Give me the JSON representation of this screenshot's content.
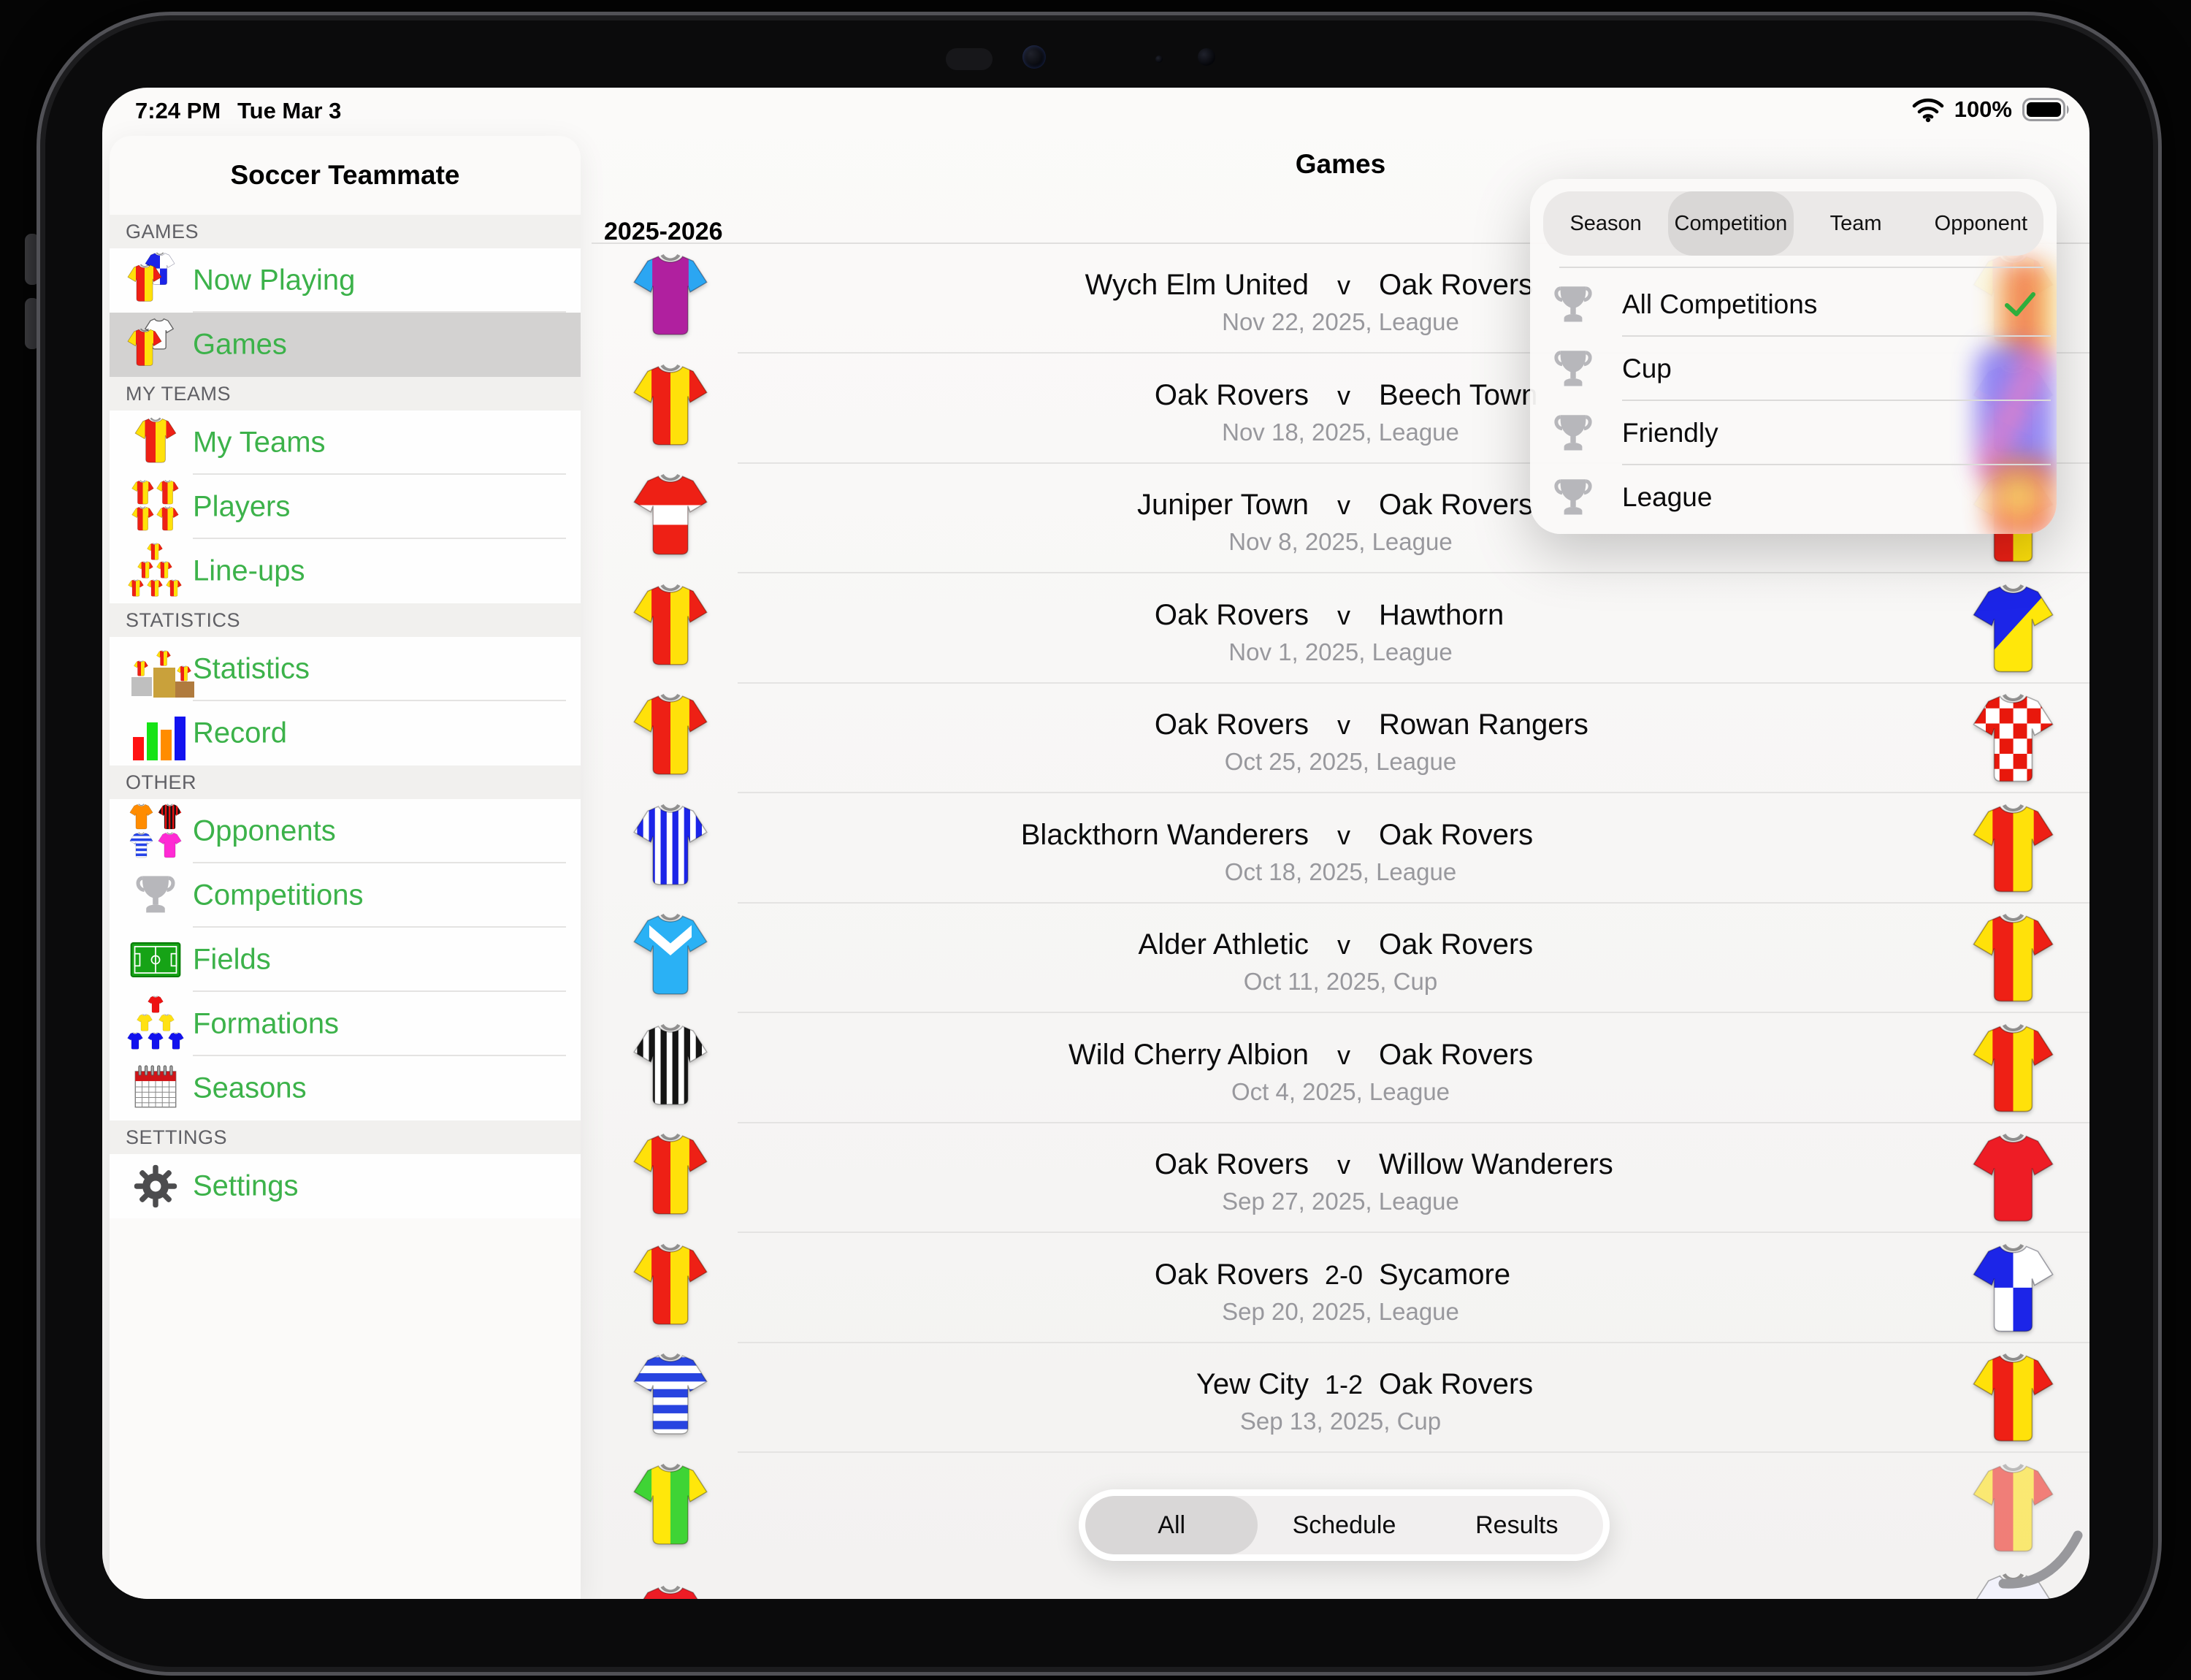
{
  "status_bar": {
    "time": "7:24 PM",
    "date": "Tue Mar 3",
    "battery_percent": "100%",
    "icons": [
      "wifi-icon",
      "battery-icon"
    ]
  },
  "colors": {
    "accent_green": "#3cb24a",
    "check_green": "#2fae3c",
    "selected_gray": "#d3d2d1"
  },
  "sidebar": {
    "title": "Soccer Teammate",
    "sections": [
      {
        "header": "GAMES",
        "items": [
          {
            "label": "Now Playing",
            "icon": "now-playing",
            "selected": false
          },
          {
            "label": "Games",
            "icon": "games",
            "selected": true
          }
        ]
      },
      {
        "header": "MY TEAMS",
        "items": [
          {
            "label": "My Teams",
            "icon": "my-teams",
            "selected": false
          },
          {
            "label": "Players",
            "icon": "players",
            "selected": false
          },
          {
            "label": "Line-ups",
            "icon": "line-ups",
            "selected": false
          }
        ]
      },
      {
        "header": "STATISTICS",
        "items": [
          {
            "label": "Statistics",
            "icon": "statistics",
            "selected": false
          },
          {
            "label": "Record",
            "icon": "record",
            "selected": false
          }
        ]
      },
      {
        "header": "OTHER",
        "items": [
          {
            "label": "Opponents",
            "icon": "opponents",
            "selected": false
          },
          {
            "label": "Competitions",
            "icon": "competitions",
            "selected": false
          },
          {
            "label": "Fields",
            "icon": "fields",
            "selected": false
          },
          {
            "label": "Formations",
            "icon": "formations",
            "selected": false
          },
          {
            "label": "Seasons",
            "icon": "seasons",
            "selected": false
          }
        ]
      },
      {
        "header": "SETTINGS",
        "items": [
          {
            "label": "Settings",
            "icon": "settings",
            "selected": false
          }
        ]
      }
    ]
  },
  "main": {
    "title": "Games",
    "season_header": "2025-2026",
    "games": [
      {
        "home": "Wych Elm United",
        "sep": "v",
        "away": "Oak Rovers",
        "detail": "Nov 22, 2025, League",
        "home_jersey": {
          "pattern": "sleeves",
          "c1": "#b0209f",
          "c2": "#2ba6f2"
        },
        "away_jersey": {
          "pattern": "halves",
          "c1": "#ee2015",
          "c2": "#ffe10a"
        }
      },
      {
        "home": "Oak Rovers",
        "sep": "v",
        "away": "Beech Town",
        "detail": "Nov 18, 2025, League",
        "home_jersey": {
          "pattern": "halves",
          "c1": "#ee2015",
          "c2": "#ffe10a"
        },
        "away_jersey": {
          "pattern": "sash",
          "c1": "#4a3fe0",
          "c2": "#f0409a"
        }
      },
      {
        "home": "Juniper Town",
        "sep": "v",
        "away": "Oak Rovers",
        "detail": "Nov 8, 2025, League",
        "home_jersey": {
          "pattern": "band",
          "c1": "#ee2015",
          "c2": "#ffffff"
        },
        "away_jersey": {
          "pattern": "halves",
          "c1": "#ee2015",
          "c2": "#ffe10a"
        }
      },
      {
        "home": "Oak Rovers",
        "sep": "v",
        "away": "Hawthorn",
        "detail": "Nov 1, 2025, League",
        "home_jersey": {
          "pattern": "halves",
          "c1": "#ee2015",
          "c2": "#ffe10a"
        },
        "away_jersey": {
          "pattern": "diag",
          "c1": "#1c25e8",
          "c2": "#ffe70a"
        }
      },
      {
        "home": "Oak Rovers",
        "sep": "v",
        "away": "Rowan Rangers",
        "detail": "Oct 25, 2025, League",
        "home_jersey": {
          "pattern": "halves",
          "c1": "#ee2015",
          "c2": "#ffe10a"
        },
        "away_jersey": {
          "pattern": "checker",
          "c1": "#ffffff",
          "c2": "#e8180c"
        }
      },
      {
        "home": "Blackthorn Wanderers",
        "sep": "v",
        "away": "Oak Rovers",
        "detail": "Oct 18, 2025, League",
        "home_jersey": {
          "pattern": "stripes",
          "c1": "#ffffff",
          "c2": "#1c25e8"
        },
        "away_jersey": {
          "pattern": "halves",
          "c1": "#ee2015",
          "c2": "#ffe10a"
        }
      },
      {
        "home": "Alder Athletic",
        "sep": "v",
        "away": "Oak Rovers",
        "detail": "Oct 11, 2025, Cup",
        "home_jersey": {
          "pattern": "chevron",
          "c1": "#2ab1f5",
          "c2": "#ffffff"
        },
        "away_jersey": {
          "pattern": "halves",
          "c1": "#ee2015",
          "c2": "#ffe10a"
        }
      },
      {
        "home": "Wild Cherry Albion",
        "sep": "v",
        "away": "Oak Rovers",
        "detail": "Oct 4, 2025, League",
        "home_jersey": {
          "pattern": "stripes",
          "c1": "#ffffff",
          "c2": "#151515"
        },
        "away_jersey": {
          "pattern": "halves",
          "c1": "#ee2015",
          "c2": "#ffe10a"
        }
      },
      {
        "home": "Oak Rovers",
        "sep": "v",
        "away": "Willow Wanderers",
        "detail": "Sep 27, 2025, League",
        "home_jersey": {
          "pattern": "halves",
          "c1": "#ee2015",
          "c2": "#ffe10a"
        },
        "away_jersey": {
          "pattern": "plain",
          "c1": "#ee1c25"
        }
      },
      {
        "home": "Oak Rovers",
        "sep": "2-0",
        "away": "Sycamore",
        "detail": "Sep 20, 2025, League",
        "home_jersey": {
          "pattern": "halves",
          "c1": "#ee2015",
          "c2": "#ffe10a"
        },
        "away_jersey": {
          "pattern": "quarters",
          "c1": "#1c25e8",
          "c2": "#ffffff"
        }
      },
      {
        "home": "Yew City",
        "sep": "1-2",
        "away": "Oak Rovers",
        "detail": "Sep 13, 2025, Cup",
        "home_jersey": {
          "pattern": "hoops",
          "c1": "#ffffff",
          "c2": "#2844e0"
        },
        "away_jersey": {
          "pattern": "halves",
          "c1": "#ee2015",
          "c2": "#ffe10a"
        }
      },
      {
        "home": "",
        "sep": "",
        "away": "",
        "detail": "",
        "partial": true,
        "home_jersey": {
          "pattern": "halves",
          "c1": "#ffe70a",
          "c2": "#3fd435"
        },
        "away_jersey": {
          "pattern": "halves",
          "c1": "#ee2015",
          "c2": "#ffe10a"
        }
      }
    ],
    "bottom_slivers": {
      "left_jersey": {
        "pattern": "plain",
        "c1": "#ee1c25"
      },
      "right_jersey": {
        "pattern": "plain",
        "c1": "#f2f2fb"
      }
    }
  },
  "popover": {
    "tabs": [
      {
        "label": "Season",
        "selected": false
      },
      {
        "label": "Competition",
        "selected": true
      },
      {
        "label": "Team",
        "selected": false
      },
      {
        "label": "Opponent",
        "selected": false
      }
    ],
    "options": [
      {
        "label": "All Competitions",
        "icon": "trophy-icon",
        "checked": true
      },
      {
        "label": "Cup",
        "icon": "trophy-icon",
        "checked": false
      },
      {
        "label": "Friendly",
        "icon": "trophy-icon",
        "checked": false
      },
      {
        "label": "League",
        "icon": "trophy-icon",
        "checked": false
      }
    ]
  },
  "bottom_tabs": [
    {
      "label": "All",
      "selected": true
    },
    {
      "label": "Schedule",
      "selected": false
    },
    {
      "label": "Results",
      "selected": false
    }
  ]
}
